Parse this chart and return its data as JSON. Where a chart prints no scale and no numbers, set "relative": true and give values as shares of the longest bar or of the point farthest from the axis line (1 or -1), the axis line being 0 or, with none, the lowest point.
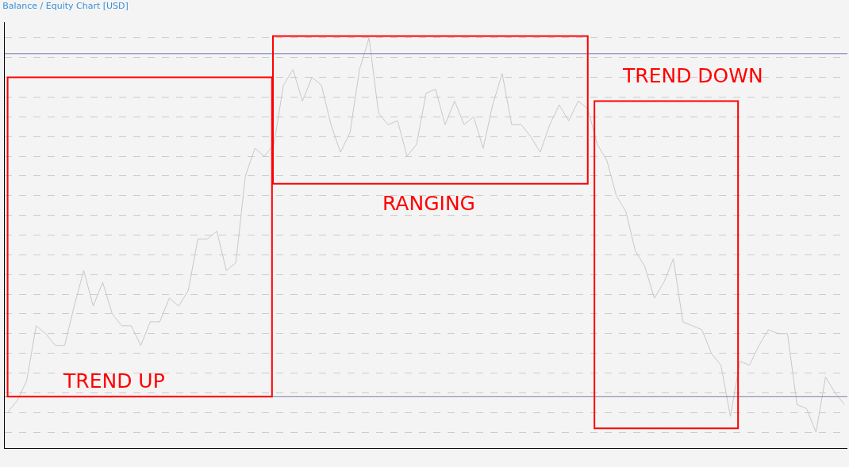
{
  "chart_data": {
    "type": "line",
    "title": "Balance / Equity Chart [USD]",
    "relative": true,
    "grid": "y",
    "categories": [
      null,
      null,
      null,
      null,
      null,
      null,
      null,
      null,
      null,
      null,
      null,
      null,
      null,
      null,
      null,
      null,
      null,
      null,
      null,
      null,
      null,
      null,
      null,
      null,
      null,
      null,
      null,
      null,
      null,
      null,
      null,
      null,
      null,
      null,
      null,
      null,
      null,
      null,
      null,
      null,
      null,
      null,
      null,
      null,
      null,
      null,
      null,
      null,
      null,
      null,
      null,
      null,
      null,
      null,
      null,
      null,
      null,
      null,
      null,
      null,
      null,
      null,
      null,
      null,
      null,
      null,
      null,
      null,
      null,
      null,
      null,
      null,
      null,
      null,
      null,
      null,
      null,
      null,
      null,
      null,
      null,
      null,
      null,
      null,
      null,
      null,
      null,
      null,
      null
    ],
    "series": [
      {
        "color": "#c8c8c8",
        "values": [
          0.05,
          0.08,
          0.13,
          0.27,
          0.25,
          0.22,
          0.22,
          0.32,
          0.41,
          0.32,
          0.38,
          0.3,
          0.27,
          0.27,
          0.22,
          0.28,
          0.28,
          0.34,
          0.32,
          0.36,
          0.49,
          0.49,
          0.51,
          0.41,
          0.43,
          0.65,
          0.72,
          0.7,
          0.73,
          0.88,
          0.92,
          0.84,
          0.9,
          0.88,
          0.78,
          0.71,
          0.76,
          0.92,
          1,
          0.81,
          0.78,
          0.79,
          0.7,
          0.73,
          0.86,
          0.87,
          0.78,
          0.84,
          0.78,
          0.8,
          0.72,
          0.83,
          0.91,
          0.78,
          0.78,
          0.75,
          0.71,
          0.78,
          0.83,
          0.79,
          0.84,
          0.82,
          0.73,
          0.69,
          0.6,
          0.56,
          0.46,
          0.42,
          0.34,
          0.38,
          0.44,
          0.28,
          0.27,
          0.26,
          0.2,
          0.17,
          0.04,
          0.18,
          0.17,
          0.22,
          0.26,
          0.25,
          0.25,
          0.07,
          0.06,
          0,
          0.14,
          0.1,
          0.07
        ]
      }
    ],
    "ref_lines": [
      {
        "axis": "y",
        "value": 0.96,
        "color": "#7b7bb0"
      },
      {
        "axis": "y",
        "value": 0.09,
        "color": "#7b7bb0"
      }
    ],
    "annotations": [
      "TREND UP",
      "RANGING",
      "TREND DOWN"
    ],
    "line_style": "solid",
    "marker": "none"
  }
}
